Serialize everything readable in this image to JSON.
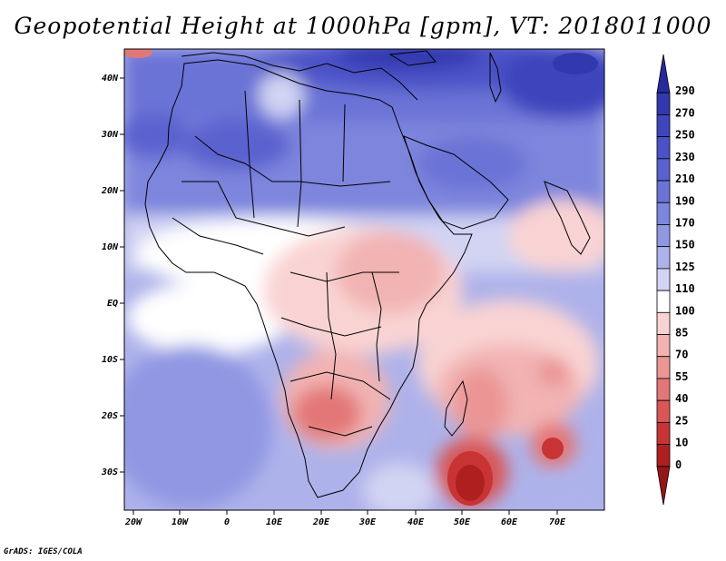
{
  "title": "Geopotential Height at 1000hPa [gpm], VT: 2018011000",
  "credit": "GrADS: IGES/COLA",
  "map": {
    "lon_range": [
      -22,
      80
    ],
    "lat_range": [
      -37,
      45
    ],
    "x_ticks": [
      "20W",
      "10W",
      "0",
      "10E",
      "20E",
      "30E",
      "40E",
      "50E",
      "60E",
      "70E"
    ],
    "y_ticks": [
      "40N",
      "30N",
      "20N",
      "10N",
      "EQ",
      "10S",
      "20S",
      "30S"
    ],
    "features": {
      "strongest_high": "Central Asia / Middle East (dark blue, ~250-290 gpm)",
      "lows": [
        "Southern Africa (~25-55 gpm)",
        "Southwest Indian Ocean near 50E 33S (~0-10 gpm)",
        "Indian Ocean near 70E 25S (~10-25 gpm)"
      ]
    }
  },
  "colorbar": {
    "levels": [
      "290",
      "270",
      "250",
      "230",
      "210",
      "190",
      "170",
      "150",
      "125",
      "110",
      "100",
      "85",
      "70",
      "55",
      "40",
      "25",
      "10",
      "0"
    ],
    "colors": [
      "#262a9e",
      "#3238ad",
      "#3e45bd",
      "#4b52c7",
      "#5a62cf",
      "#6b73d6",
      "#7d85dd",
      "#9197e3",
      "#aeb2ea",
      "#d2d4f3",
      "#ffffff",
      "#f9d3d3",
      "#f2b3b3",
      "#eb9595",
      "#e37777",
      "#d85656",
      "#c83434",
      "#b01f1f",
      "#951616"
    ]
  }
}
